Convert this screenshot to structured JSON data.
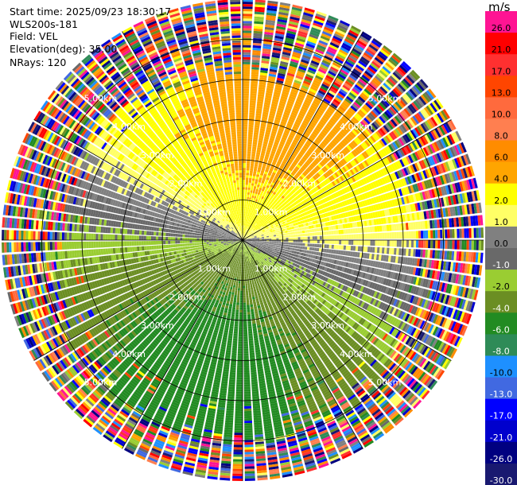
{
  "header": {
    "start_time": "Start time: 2025/09/23 18:30:17",
    "instrument": "WLS200s-181",
    "field": "Field: VEL",
    "elevation": "Elevation(deg): 35.00",
    "nrays": "NRays: 120"
  },
  "legend": {
    "unit": "m/s",
    "ticks": [
      "26.0",
      "21.0",
      "17.0",
      "13.0",
      "10.0",
      "8.0",
      "6.0",
      "4.0",
      "2.0",
      "1.0",
      "0.0",
      "-1.0",
      "-2.0",
      "-4.0",
      "-6.0",
      "-8.0",
      "-10.0",
      "-13.0",
      "-17.0",
      "-21.0",
      "-26.0",
      "-30.0"
    ],
    "colors": [
      "#ff1493",
      "#ff0000",
      "#ff3030",
      "#ff4500",
      "#ff6a3d",
      "#ff7f50",
      "#ff8c00",
      "#ffa500",
      "#ffff00",
      "#ffff66",
      "#808080",
      "#696969",
      "#9acd32",
      "#6b8e23",
      "#228b22",
      "#2e8b57",
      "#1e90ff",
      "#4169e1",
      "#0000ff",
      "#0000cd",
      "#000080",
      "#191970"
    ]
  },
  "chart_data": {
    "type": "ppi",
    "title": "",
    "field": "VEL",
    "units": "m/s",
    "elevation_deg": 35.0,
    "n_rays": 120,
    "max_range_km": 6.0,
    "range_rings_km": [
      1.0,
      2.0,
      3.0,
      4.0,
      5.0
    ],
    "range_ring_labels": [
      "1.00km",
      "2.00km",
      "3.00km",
      "4.00km",
      "5.00km"
    ],
    "radial_lines_deg": [
      0,
      30,
      60,
      90,
      120,
      150,
      180,
      210,
      240,
      270,
      300,
      330
    ],
    "color_bounds": [
      -30,
      -26,
      -21,
      -17,
      -13,
      -10,
      -8,
      -6,
      -4,
      -2,
      -1,
      0,
      1,
      2,
      4,
      6,
      8,
      10,
      13,
      17,
      21,
      26,
      30
    ],
    "color_levels": [
      "#191970",
      "#000080",
      "#0000cd",
      "#0000ff",
      "#4169e1",
      "#1e90ff",
      "#2e8b57",
      "#228b22",
      "#6b8e23",
      "#9acd32",
      "#696969",
      "#808080",
      "#ffff66",
      "#ffff00",
      "#ffa500",
      "#ff8c00",
      "#ff7f50",
      "#ff6a3d",
      "#ff4500",
      "#ff3030",
      "#ff0000",
      "#ff1493"
    ],
    "wind_model": {
      "direction_from_deg": 195,
      "speed_profile_ms": [
        [
          0.0,
          2.0
        ],
        [
          1.0,
          4.5
        ],
        [
          2.0,
          5.5
        ],
        [
          3.0,
          6.5
        ],
        [
          4.2,
          6.0
        ]
      ],
      "valid_range_km": 4.6,
      "noise_beyond_km": true
    }
  }
}
